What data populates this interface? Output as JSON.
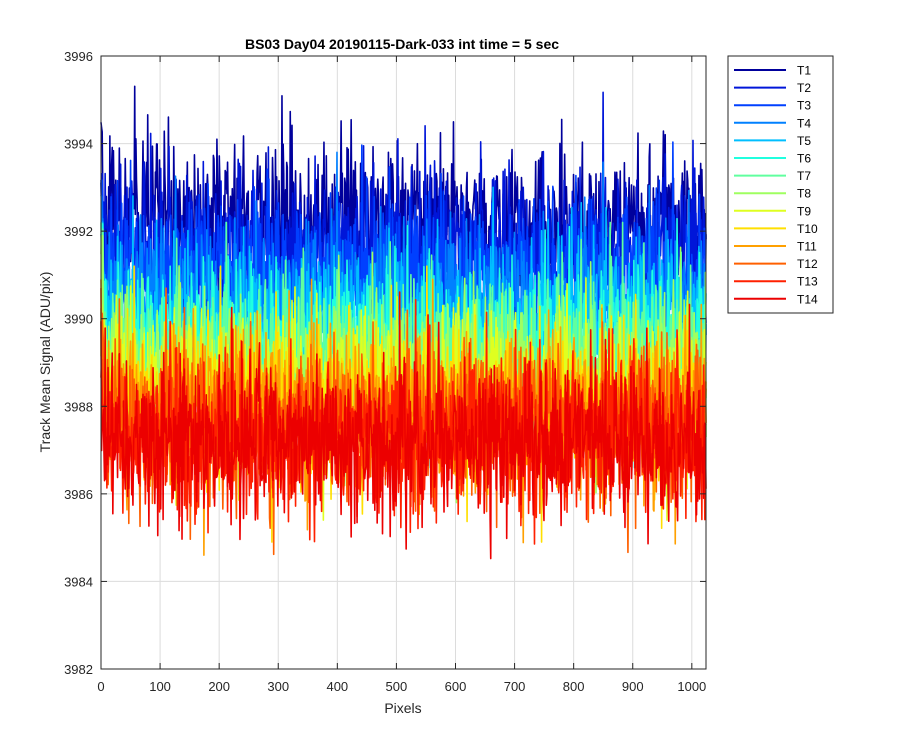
{
  "chart_data": {
    "type": "line",
    "title": "BS03 Day04 20190115-Dark-033 int time = 5 sec",
    "xlabel": "Pixels",
    "ylabel": "Track Mean Signal (ADU/pix)",
    "xlim": [
      0,
      1024
    ],
    "ylim": [
      3982,
      3996
    ],
    "xticks": [
      0,
      100,
      200,
      300,
      400,
      500,
      600,
      700,
      800,
      900,
      1000
    ],
    "yticks": [
      3982,
      3984,
      3986,
      3988,
      3990,
      3992,
      3994,
      3996
    ],
    "grid": true,
    "legend_position": "outside-top-right",
    "n_points_per_series": 1024,
    "series": [
      {
        "name": "T1",
        "color": "#00009c",
        "mean": 3992.2,
        "noise": 0.85,
        "min": 3989.0,
        "max": 3995.8
      },
      {
        "name": "T2",
        "color": "#0016d9",
        "mean": 3991.6,
        "noise": 0.85,
        "min": 3988.6,
        "max": 3995.3
      },
      {
        "name": "T3",
        "color": "#0040ff",
        "mean": 3991.0,
        "noise": 0.85,
        "min": 3988.0,
        "max": 3994.5
      },
      {
        "name": "T4",
        "color": "#0080ff",
        "mean": 3990.4,
        "noise": 0.85,
        "min": 3987.5,
        "max": 3993.8
      },
      {
        "name": "T5",
        "color": "#00bfff",
        "mean": 3989.9,
        "noise": 0.85,
        "min": 3987.0,
        "max": 3993.0
      },
      {
        "name": "T6",
        "color": "#20ffdf",
        "mean": 3989.5,
        "noise": 0.85,
        "min": 3986.6,
        "max": 3992.6
      },
      {
        "name": "T7",
        "color": "#60ff9f",
        "mean": 3989.1,
        "noise": 0.85,
        "min": 3986.2,
        "max": 3992.2
      },
      {
        "name": "T8",
        "color": "#9fff60",
        "mean": 3988.8,
        "noise": 0.85,
        "min": 3985.8,
        "max": 3991.9
      },
      {
        "name": "T9",
        "color": "#dfff20",
        "mean": 3988.4,
        "noise": 0.85,
        "min": 3985.4,
        "max": 3991.6
      },
      {
        "name": "T10",
        "color": "#ffdf00",
        "mean": 3988.1,
        "noise": 0.85,
        "min": 3984.9,
        "max": 3991.2
      },
      {
        "name": "T11",
        "color": "#ffa000",
        "mean": 3987.8,
        "noise": 0.85,
        "min": 3984.6,
        "max": 3990.9
      },
      {
        "name": "T12",
        "color": "#ff6000",
        "mean": 3987.6,
        "noise": 0.85,
        "min": 3983.0,
        "max": 3990.7
      },
      {
        "name": "T13",
        "color": "#ff2000",
        "mean": 3987.3,
        "noise": 0.85,
        "min": 3983.7,
        "max": 3990.5
      },
      {
        "name": "T14",
        "color": "#ec0000",
        "mean": 3987.2,
        "noise": 0.85,
        "min": 3983.9,
        "max": 3990.8
      }
    ]
  }
}
